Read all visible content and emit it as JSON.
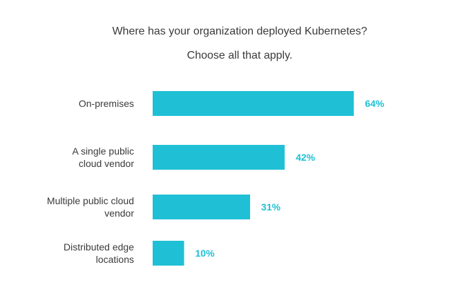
{
  "chart_data": {
    "type": "bar",
    "orientation": "horizontal",
    "title": "Where has your organization deployed Kubernetes?",
    "subtitle": "Choose all that apply.",
    "categories": [
      "On-premises",
      "A single public cloud vendor",
      "Multiple public cloud vendor",
      "Distributed edge locations"
    ],
    "category_label_lines": [
      [
        "On-premises"
      ],
      [
        "A single public",
        "cloud vendor"
      ],
      [
        "Multiple public cloud",
        "vendor"
      ],
      [
        "Distributed edge",
        "locations"
      ]
    ],
    "values": [
      64,
      42,
      31,
      10
    ],
    "value_labels": [
      "64%",
      "42%",
      "31%",
      "10%"
    ],
    "unit": "%",
    "xlim": [
      0,
      100
    ],
    "grid": false,
    "legend": "none",
    "bar_color": "#1fc0d5",
    "value_label_color": "#1fc0d5"
  }
}
